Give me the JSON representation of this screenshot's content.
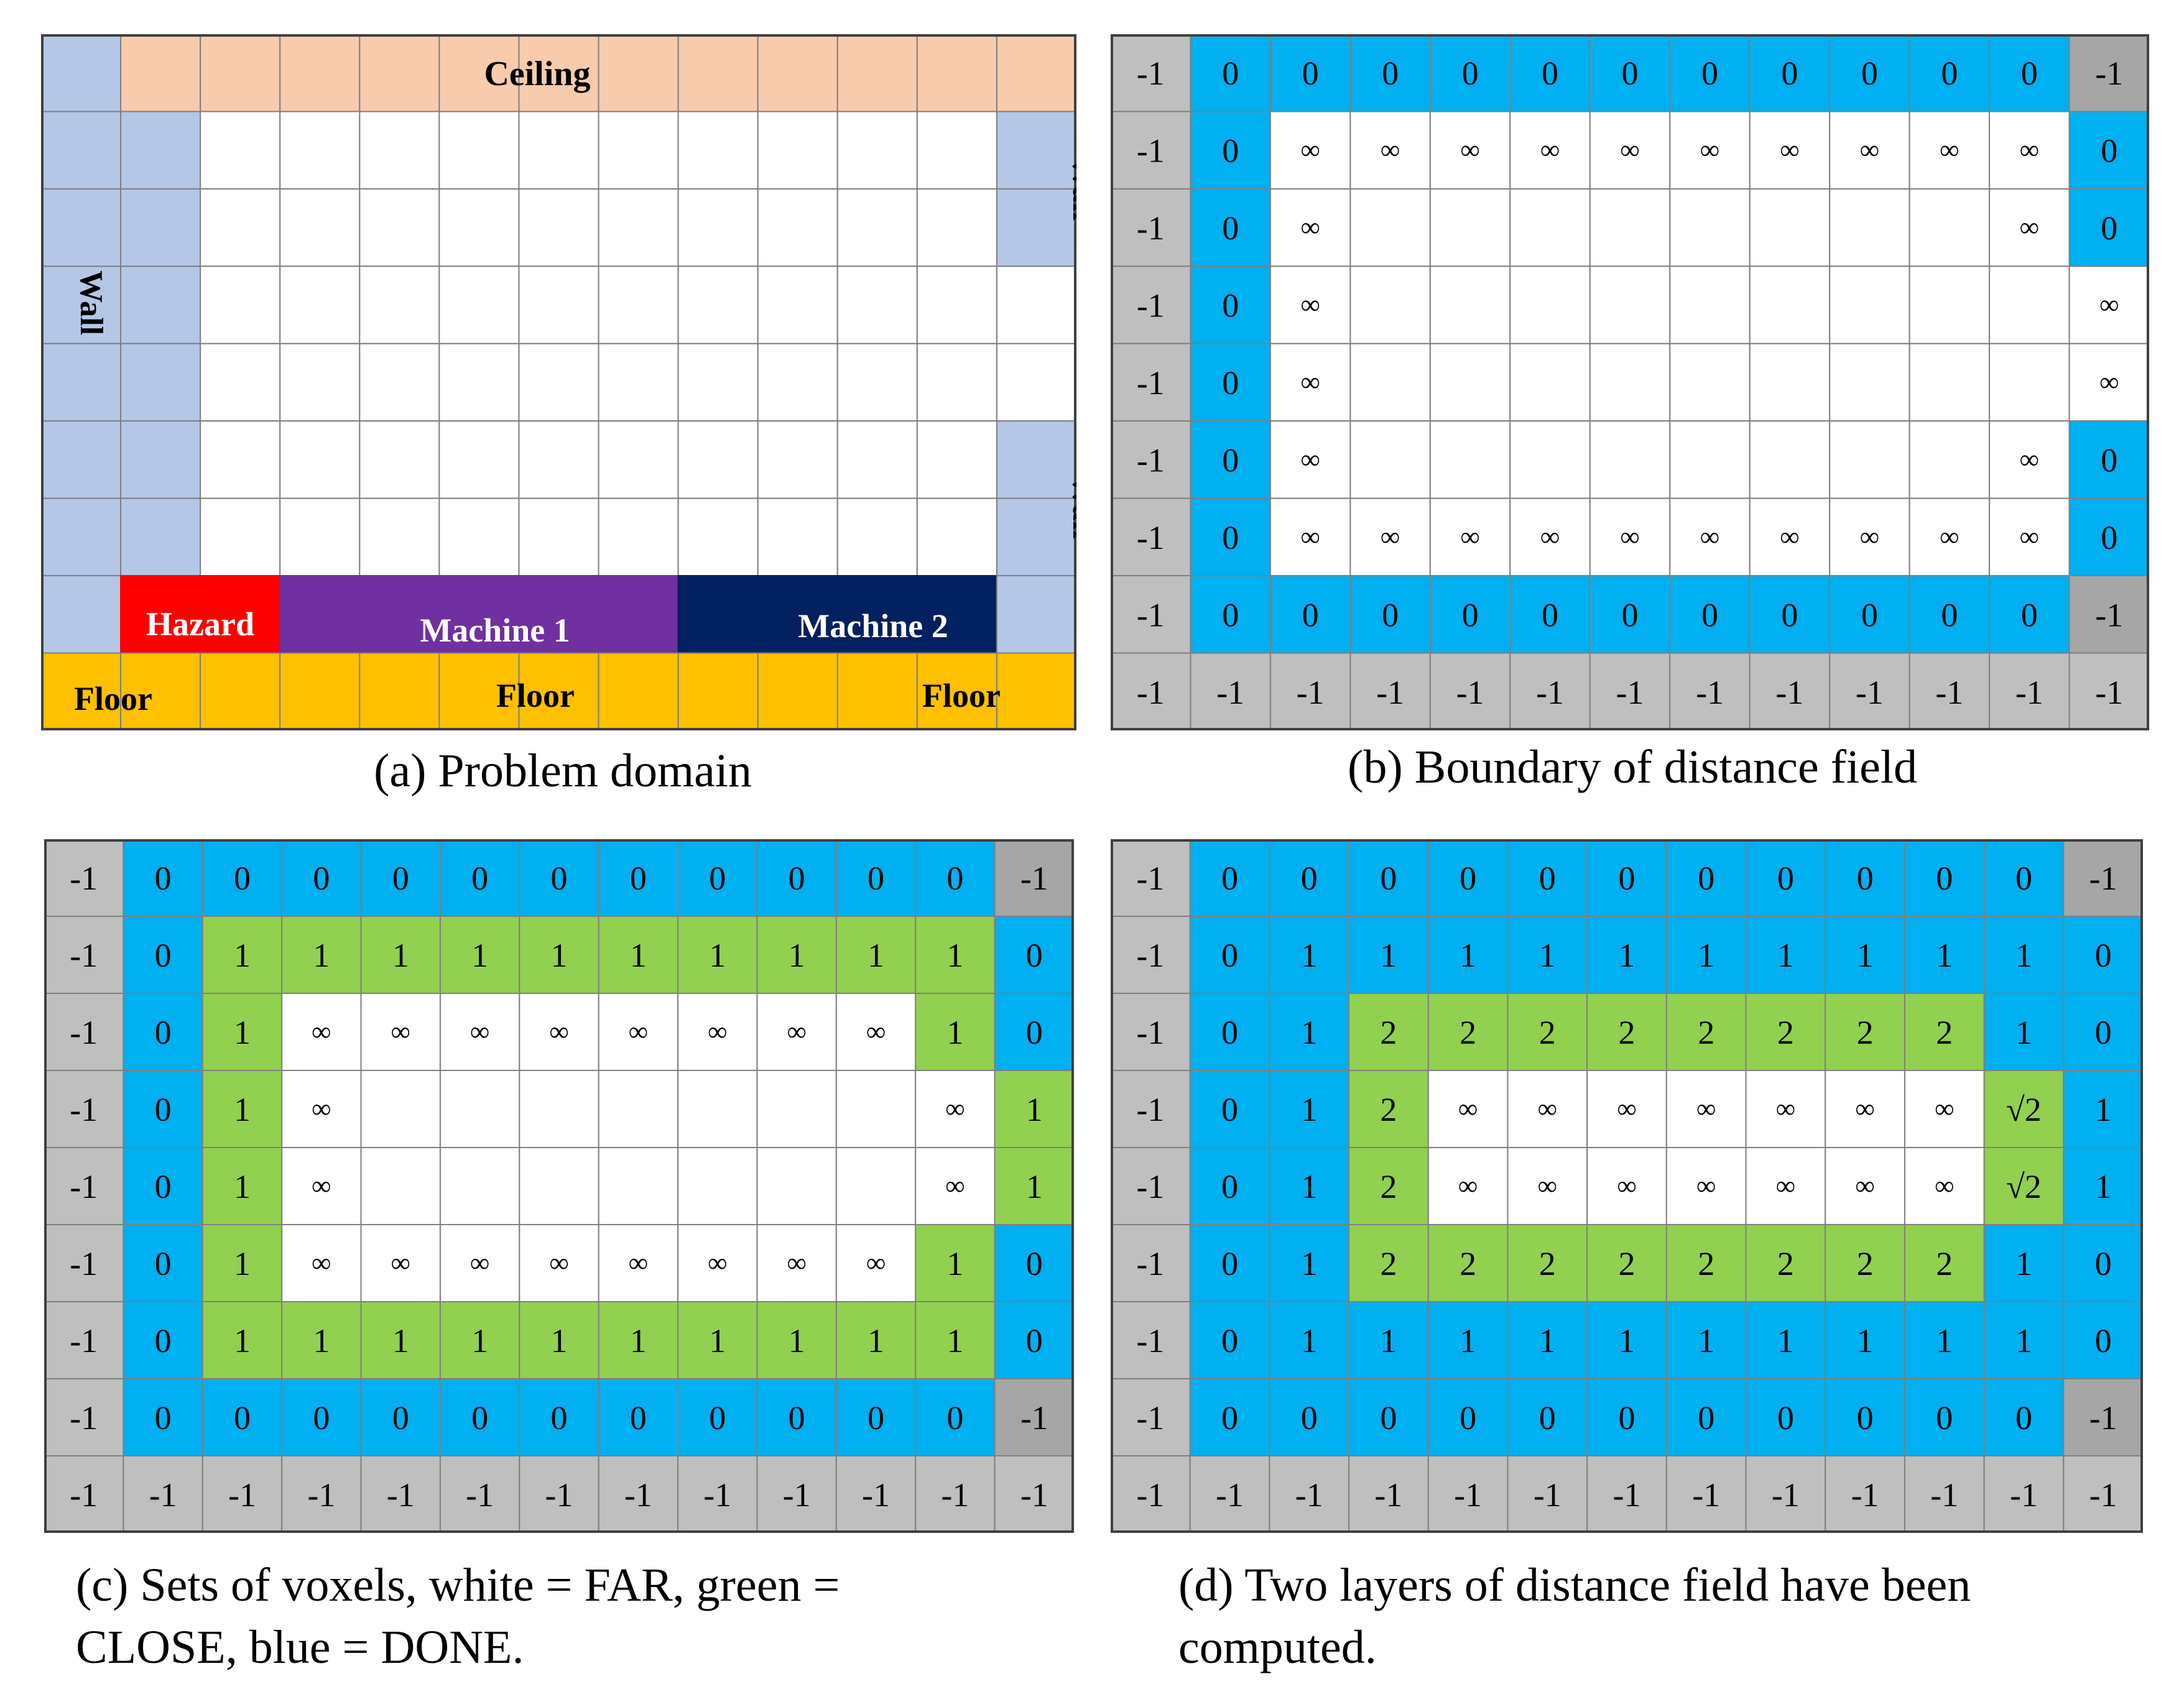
{
  "colors": {
    "wall": "#b4c7e7",
    "ceiling": "#f8cbad",
    "floor": "#ffc000",
    "hazard": "#ff0000",
    "machine1": "#7030a0",
    "machine2": "#002060",
    "blue": "#00b0f0",
    "green": "#92d050",
    "grey": "#bfbfbf",
    "greyDark": "#a6a6a6",
    "white": "#ffffff",
    "grid": "#7f7f7f"
  },
  "symbols": {
    "inf": "∞",
    "sqrt2": "√2"
  },
  "panel_a": {
    "caption": "(a) Problem domain",
    "labels": {
      "ceiling": "Ceiling",
      "wall_left": "Wall",
      "wall_right_top": "Wall",
      "wall_right_bottom": "Wall",
      "hazard": "Hazard",
      "machine1": "Machine 1",
      "machine2": "Machine 2",
      "floor_left": "Floor",
      "floor_mid": "Floor",
      "floor_right": "Floor"
    },
    "grid": [
      "WCCCCCCCCCCCC",
      "WWNNNNNNNNNNW",
      "WWNNNNNNNNNNW",
      "WWNNNNNNNNNNN",
      "WWNNNNNNNNNNN",
      "WWNNNNNNNNNNW",
      "WWNNNNNNNNNNW",
      "WHHMMMMMQQQQW",
      "FFFFFFFFFFFFF"
    ]
  },
  "panel_b": {
    "caption": "(b) Boundary of distance field",
    "values": [
      [
        "-1",
        "0",
        "0",
        "0",
        "0",
        "0",
        "0",
        "0",
        "0",
        "0",
        "0",
        "0",
        "-1"
      ],
      [
        "-1",
        "0",
        "∞",
        "∞",
        "∞",
        "∞",
        "∞",
        "∞",
        "∞",
        "∞",
        "∞",
        "∞",
        "0"
      ],
      [
        "-1",
        "0",
        "∞",
        "",
        "",
        "",
        "",
        "",
        "",
        "",
        "",
        "∞",
        "0"
      ],
      [
        "-1",
        "0",
        "∞",
        "",
        "",
        "",
        "",
        "",
        "",
        "",
        "",
        "",
        "∞"
      ],
      [
        "-1",
        "0",
        "∞",
        "",
        "",
        "",
        "",
        "",
        "",
        "",
        "",
        "",
        "∞"
      ],
      [
        "-1",
        "0",
        "∞",
        "",
        "",
        "",
        "",
        "",
        "",
        "",
        "",
        "∞",
        "0"
      ],
      [
        "-1",
        "0",
        "∞",
        "∞",
        "∞",
        "∞",
        "∞",
        "∞",
        "∞",
        "∞",
        "∞",
        "∞",
        "0"
      ],
      [
        "-1",
        "0",
        "0",
        "0",
        "0",
        "0",
        "0",
        "0",
        "0",
        "0",
        "0",
        "0",
        "-1"
      ],
      [
        "-1",
        "-1",
        "-1",
        "-1",
        "-1",
        "-1",
        "-1",
        "-1",
        "-1",
        "-1",
        "-1",
        "-1",
        "-1"
      ]
    ],
    "colors": [
      "gBBBBBBBBBBBd",
      "gBWWWWWWWWWWB",
      "gBWWWWWWWWWWB",
      "gBWWWWWWWWWWW",
      "gBWWWWWWWWWWW",
      "gBWWWWWWWWWWB",
      "gBWWWWWWWWWWB",
      "gBBBBBBBBBBBd",
      "ggggggggggggg"
    ]
  },
  "panel_c": {
    "caption_line1": "(c) Sets of voxels, white = FAR, green =",
    "caption_line2": "CLOSE, blue = DONE.",
    "values": [
      [
        "-1",
        "0",
        "0",
        "0",
        "0",
        "0",
        "0",
        "0",
        "0",
        "0",
        "0",
        "0",
        "-1"
      ],
      [
        "-1",
        "0",
        "1",
        "1",
        "1",
        "1",
        "1",
        "1",
        "1",
        "1",
        "1",
        "1",
        "0"
      ],
      [
        "-1",
        "0",
        "1",
        "∞",
        "∞",
        "∞",
        "∞",
        "∞",
        "∞",
        "∞",
        "∞",
        "1",
        "0"
      ],
      [
        "-1",
        "0",
        "1",
        "∞",
        "",
        "",
        "",
        "",
        "",
        "",
        "",
        "∞",
        "1"
      ],
      [
        "-1",
        "0",
        "1",
        "∞",
        "",
        "",
        "",
        "",
        "",
        "",
        "",
        "∞",
        "1"
      ],
      [
        "-1",
        "0",
        "1",
        "∞",
        "∞",
        "∞",
        "∞",
        "∞",
        "∞",
        "∞",
        "∞",
        "1",
        "0"
      ],
      [
        "-1",
        "0",
        "1",
        "1",
        "1",
        "1",
        "1",
        "1",
        "1",
        "1",
        "1",
        "1",
        "0"
      ],
      [
        "-1",
        "0",
        "0",
        "0",
        "0",
        "0",
        "0",
        "0",
        "0",
        "0",
        "0",
        "0",
        "-1"
      ],
      [
        "-1",
        "-1",
        "-1",
        "-1",
        "-1",
        "-1",
        "-1",
        "-1",
        "-1",
        "-1",
        "-1",
        "-1",
        "-1"
      ]
    ],
    "colors": [
      "gBBBBBBBBBBBd",
      "gBGGGGGGGGGGB",
      "gBGWWWWWWWWGB",
      "gBGWWWWWWWWWG",
      "gBGWWWWWWWWWG",
      "gBGWWWWWWWWGB",
      "gBGGGGGGGGGGB",
      "gBBBBBBBBBBBd",
      "ggggggggggggg"
    ]
  },
  "panel_d": {
    "caption_line1": "(d) Two layers of distance field have been",
    "caption_line2": "computed.",
    "values": [
      [
        "-1",
        "0",
        "0",
        "0",
        "0",
        "0",
        "0",
        "0",
        "0",
        "0",
        "0",
        "0",
        "-1"
      ],
      [
        "-1",
        "0",
        "1",
        "1",
        "1",
        "1",
        "1",
        "1",
        "1",
        "1",
        "1",
        "1",
        "0"
      ],
      [
        "-1",
        "0",
        "1",
        "2",
        "2",
        "2",
        "2",
        "2",
        "2",
        "2",
        "2",
        "1",
        "0"
      ],
      [
        "-1",
        "0",
        "1",
        "2",
        "∞",
        "∞",
        "∞",
        "∞",
        "∞",
        "∞",
        "∞",
        "√2",
        "1"
      ],
      [
        "-1",
        "0",
        "1",
        "2",
        "∞",
        "∞",
        "∞",
        "∞",
        "∞",
        "∞",
        "∞",
        "√2",
        "1"
      ],
      [
        "-1",
        "0",
        "1",
        "2",
        "2",
        "2",
        "2",
        "2",
        "2",
        "2",
        "2",
        "1",
        "0"
      ],
      [
        "-1",
        "0",
        "1",
        "1",
        "1",
        "1",
        "1",
        "1",
        "1",
        "1",
        "1",
        "1",
        "0"
      ],
      [
        "-1",
        "0",
        "0",
        "0",
        "0",
        "0",
        "0",
        "0",
        "0",
        "0",
        "0",
        "0",
        "-1"
      ],
      [
        "-1",
        "-1",
        "-1",
        "-1",
        "-1",
        "-1",
        "-1",
        "-1",
        "-1",
        "-1",
        "-1",
        "-1",
        "-1"
      ]
    ],
    "colors": [
      "gBBBBBBBBBBBd",
      "gBBBBBBBBBBBB",
      "gBBGGGGGGGGBB",
      "gBBGWWWWWWWGB",
      "gBBGWWWWWWWGB",
      "gBBGGGGGGGGBB",
      "gBBBBBBBBBBBB",
      "gBBBBBBBBBBBd",
      "ggggggggggggg"
    ]
  }
}
